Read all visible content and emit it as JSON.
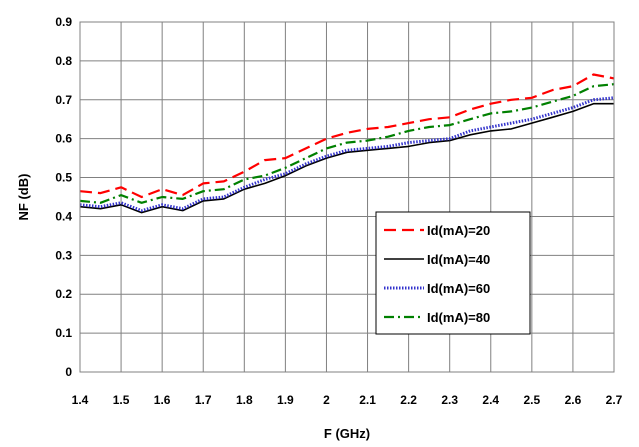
{
  "chart_data": {
    "type": "line",
    "title": "",
    "xlabel": "F (GHz)",
    "ylabel": "NF (dB)",
    "xlim": [
      1.4,
      2.7
    ],
    "ylim": [
      0,
      0.9
    ],
    "x_ticks": [
      "1.4",
      "1.5",
      "1.6",
      "1.7",
      "1.8",
      "1.9",
      "2",
      "2.1",
      "2.2",
      "2.3",
      "2.4",
      "2.5",
      "2.6",
      "2.7"
    ],
    "y_ticks": [
      "0",
      "0.1",
      "0.2",
      "0.3",
      "0.4",
      "0.5",
      "0.6",
      "0.7",
      "0.8",
      "0.9"
    ],
    "grid": true,
    "legend_position": "right",
    "x": [
      1.4,
      1.45,
      1.5,
      1.55,
      1.6,
      1.65,
      1.7,
      1.75,
      1.8,
      1.85,
      1.9,
      1.95,
      2.0,
      2.05,
      2.1,
      2.15,
      2.2,
      2.25,
      2.3,
      2.35,
      2.4,
      2.45,
      2.5,
      2.55,
      2.6,
      2.65,
      2.7
    ],
    "series": [
      {
        "name": "Id(mA)=20",
        "color": "#ff0000",
        "dash": "12,6",
        "width": 2.2,
        "values": [
          0.465,
          0.46,
          0.475,
          0.45,
          0.47,
          0.455,
          0.485,
          0.49,
          0.515,
          0.545,
          0.55,
          0.575,
          0.6,
          0.615,
          0.625,
          0.63,
          0.64,
          0.65,
          0.655,
          0.675,
          0.69,
          0.7,
          0.705,
          0.725,
          0.735,
          0.765,
          0.755
        ]
      },
      {
        "name": "Id(mA)=40",
        "color": "#000000",
        "dash": "",
        "width": 1.6,
        "values": [
          0.425,
          0.42,
          0.43,
          0.41,
          0.425,
          0.415,
          0.44,
          0.445,
          0.47,
          0.485,
          0.505,
          0.53,
          0.55,
          0.565,
          0.57,
          0.575,
          0.58,
          0.59,
          0.595,
          0.61,
          0.62,
          0.625,
          0.64,
          0.655,
          0.67,
          0.69,
          0.69
        ]
      },
      {
        "name": "Id(mA)=60",
        "color": "#3333cc",
        "dash": "1.5,1.5",
        "width": 3,
        "values": [
          0.43,
          0.425,
          0.435,
          0.415,
          0.43,
          0.42,
          0.445,
          0.45,
          0.475,
          0.495,
          0.51,
          0.535,
          0.555,
          0.57,
          0.575,
          0.58,
          0.59,
          0.595,
          0.6,
          0.62,
          0.63,
          0.64,
          0.65,
          0.665,
          0.68,
          0.7,
          0.705
        ]
      },
      {
        "name": "Id(mA)=80",
        "color": "#008000",
        "dash": "10,4,2,4",
        "width": 2.2,
        "values": [
          0.44,
          0.435,
          0.455,
          0.435,
          0.45,
          0.445,
          0.465,
          0.47,
          0.495,
          0.505,
          0.525,
          0.55,
          0.575,
          0.59,
          0.595,
          0.605,
          0.62,
          0.63,
          0.635,
          0.65,
          0.665,
          0.67,
          0.68,
          0.695,
          0.71,
          0.735,
          0.74
        ]
      }
    ]
  }
}
